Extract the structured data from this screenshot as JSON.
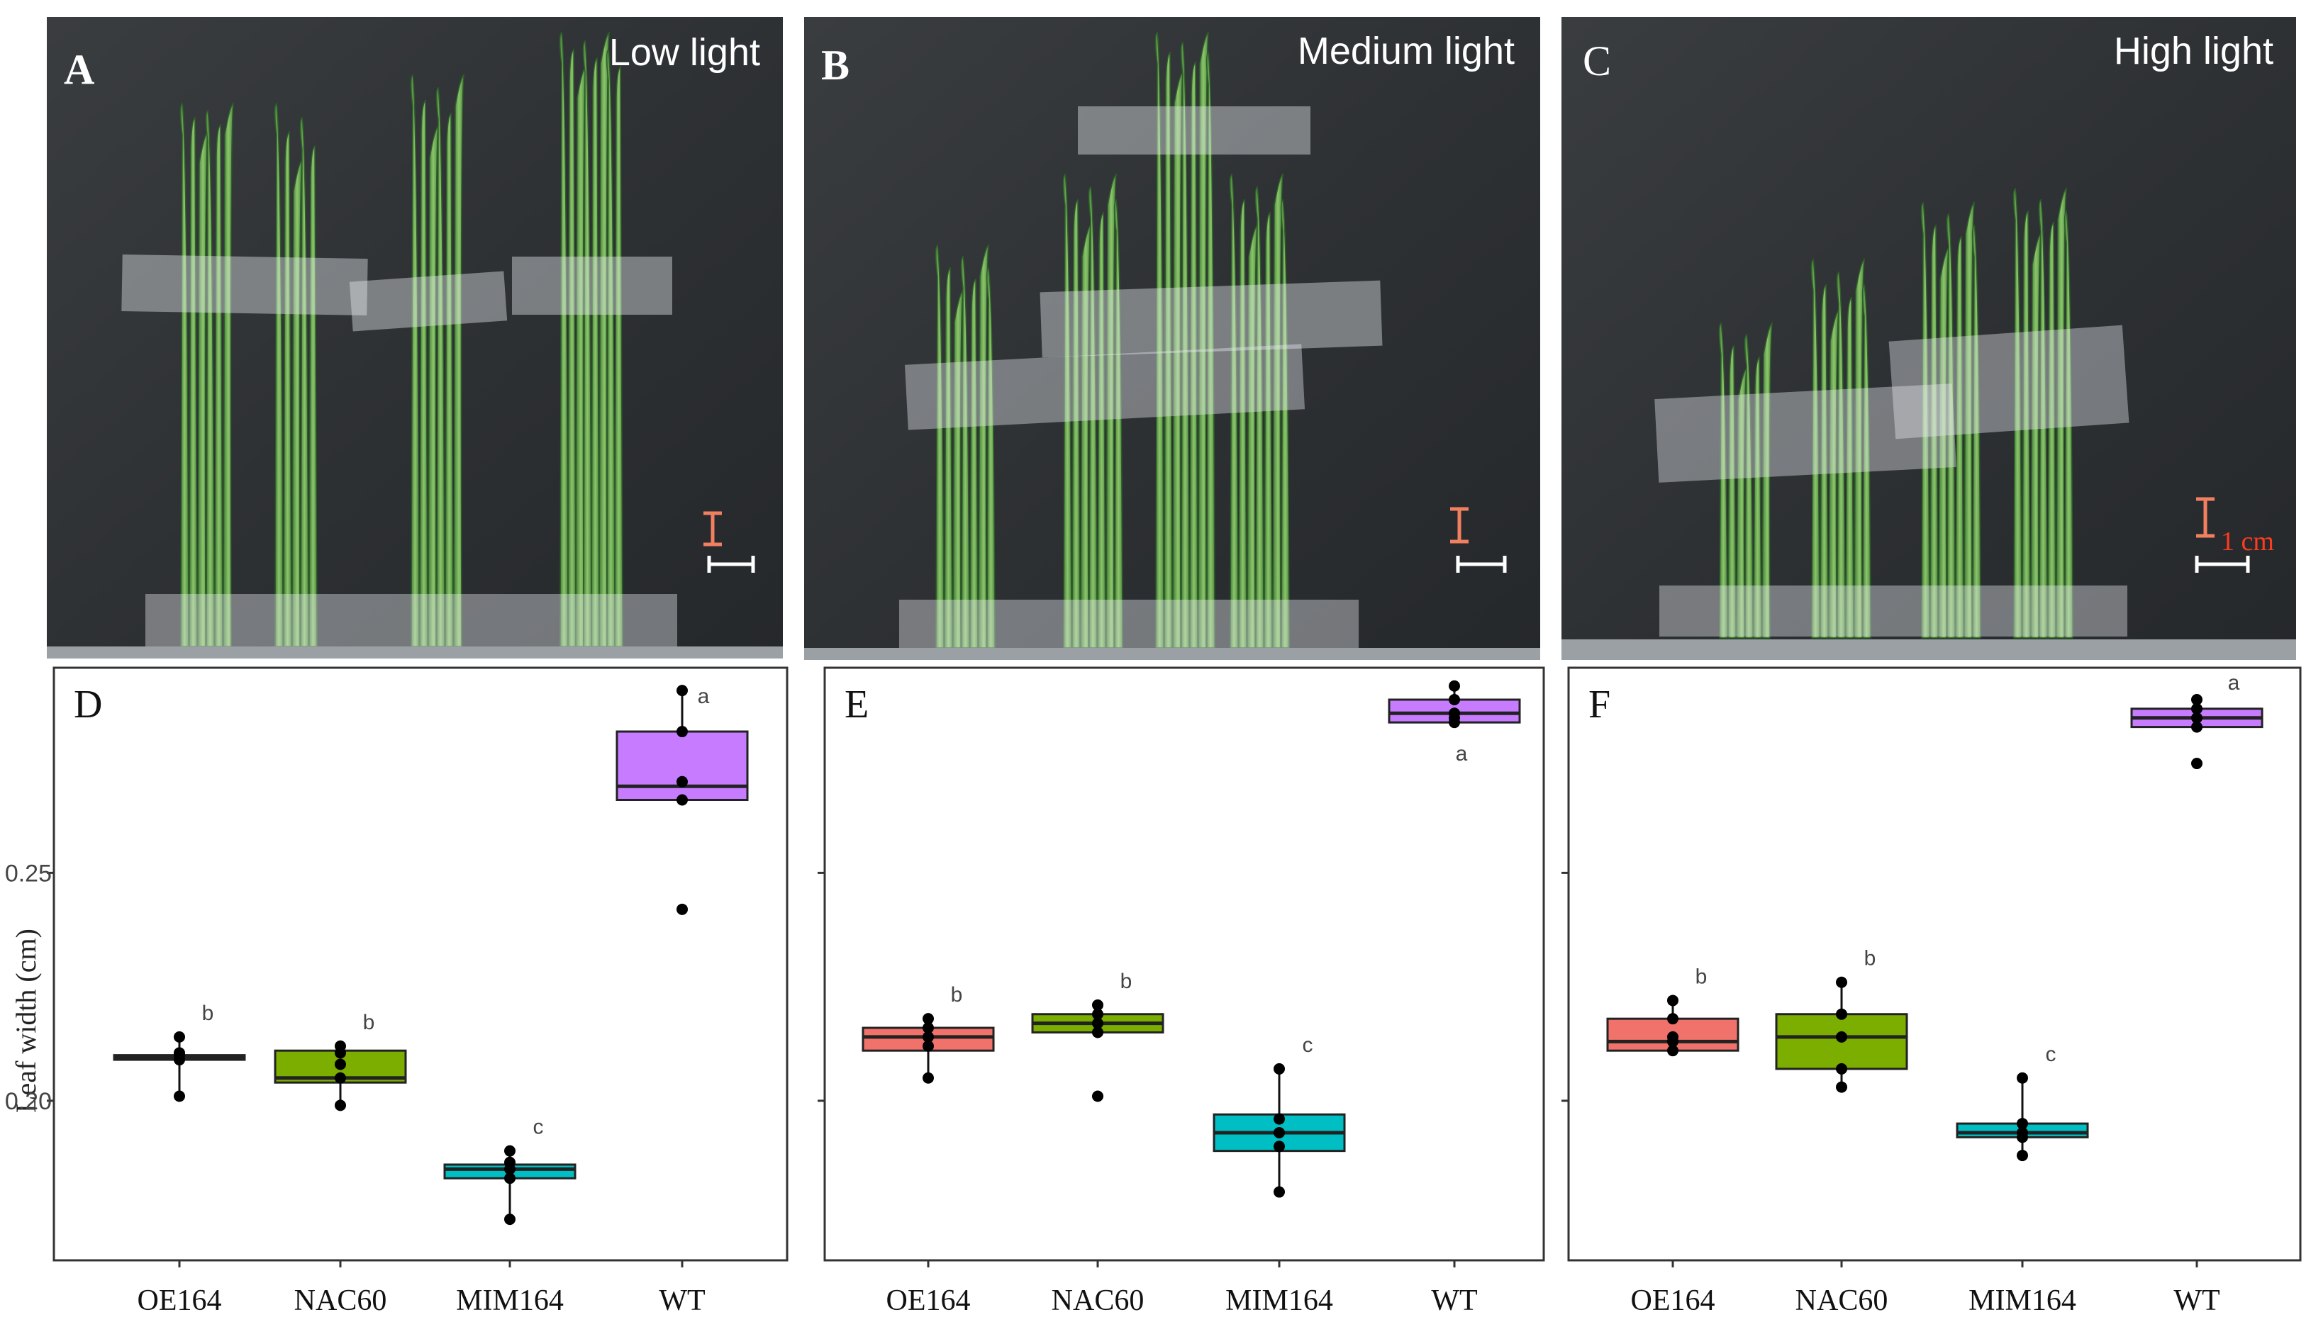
{
  "photos": [
    {
      "letter": "A",
      "title": "Low light"
    },
    {
      "letter": "B",
      "title": "Medium light"
    },
    {
      "letter": "C",
      "title": "High light",
      "scale_label": "1 cm"
    }
  ],
  "y_axis_label": "Leaf width (cm)",
  "colors": {
    "OE164": "#f0726b",
    "NAC60": "#7cae00",
    "MIM164": "#00bfc4",
    "WT": "#c77cff"
  },
  "chart_data": [
    {
      "type": "box",
      "panel": "D",
      "condition": "Low light",
      "categories": [
        "OE164",
        "NAC60",
        "MIM164",
        "WT"
      ],
      "ylabel": "Leaf width (cm)",
      "ylim": [
        0.165,
        0.295
      ],
      "yticks": [
        0.2,
        0.25
      ],
      "ytick_labels": [
        "0.20",
        "0.25"
      ],
      "boxes": [
        {
          "category": "OE164",
          "q1": 0.209,
          "median": 0.2095,
          "q3": 0.21,
          "whisker_low": 0.201,
          "whisker_high": 0.214,
          "points": [
            0.201,
            0.209,
            0.21,
            0.2105,
            0.214
          ],
          "letter": "b"
        },
        {
          "category": "NAC60",
          "q1": 0.204,
          "median": 0.205,
          "q3": 0.211,
          "whisker_low": 0.199,
          "whisker_high": 0.212,
          "points": [
            0.199,
            0.205,
            0.208,
            0.2105,
            0.212
          ],
          "letter": "b"
        },
        {
          "category": "MIM164",
          "q1": 0.183,
          "median": 0.185,
          "q3": 0.186,
          "whisker_low": 0.174,
          "whisker_high": 0.189,
          "points": [
            0.174,
            0.183,
            0.185,
            0.1865,
            0.189
          ],
          "letter": "c"
        },
        {
          "category": "WT",
          "q1": 0.266,
          "median": 0.269,
          "q3": 0.281,
          "whisker_low": 0.266,
          "whisker_high": 0.29,
          "outliers": [
            0.242
          ],
          "points": [
            0.242,
            0.266,
            0.27,
            0.281,
            0.29
          ],
          "letter": "a"
        }
      ]
    },
    {
      "type": "box",
      "panel": "E",
      "condition": "Medium light",
      "categories": [
        "OE164",
        "NAC60",
        "MIM164",
        "WT"
      ],
      "ylabel": "Leaf width (cm)",
      "ylim": [
        0.165,
        0.295
      ],
      "yticks": [
        0.2,
        0.25
      ],
      "ytick_labels": [
        "",
        ""
      ],
      "boxes": [
        {
          "category": "OE164",
          "q1": 0.211,
          "median": 0.214,
          "q3": 0.216,
          "whisker_low": 0.205,
          "whisker_high": 0.218,
          "points": [
            0.205,
            0.212,
            0.214,
            0.216,
            0.218
          ],
          "letter": "b"
        },
        {
          "category": "NAC60",
          "q1": 0.215,
          "median": 0.217,
          "q3": 0.219,
          "whisker_low": 0.215,
          "whisker_high": 0.221,
          "outliers": [
            0.201
          ],
          "points": [
            0.201,
            0.215,
            0.217,
            0.219,
            0.221
          ],
          "letter": "b"
        },
        {
          "category": "MIM164",
          "q1": 0.189,
          "median": 0.193,
          "q3": 0.197,
          "whisker_low": 0.18,
          "whisker_high": 0.207,
          "points": [
            0.18,
            0.19,
            0.193,
            0.196,
            0.207
          ],
          "letter": "c"
        },
        {
          "category": "WT",
          "q1": 0.283,
          "median": 0.285,
          "q3": 0.288,
          "whisker_low": 0.283,
          "whisker_high": 0.291,
          "points": [
            0.283,
            0.284,
            0.285,
            0.288,
            0.291
          ],
          "letter": "a"
        }
      ]
    },
    {
      "type": "box",
      "panel": "F",
      "condition": "High light",
      "categories": [
        "OE164",
        "NAC60",
        "MIM164",
        "WT"
      ],
      "ylabel": "Leaf width (cm)",
      "ylim": [
        0.165,
        0.295
      ],
      "yticks": [
        0.2,
        0.25
      ],
      "ytick_labels": [
        "",
        ""
      ],
      "boxes": [
        {
          "category": "OE164",
          "q1": 0.211,
          "median": 0.213,
          "q3": 0.218,
          "whisker_low": 0.211,
          "whisker_high": 0.222,
          "points": [
            0.211,
            0.213,
            0.214,
            0.218,
            0.222
          ],
          "letter": "b"
        },
        {
          "category": "NAC60",
          "q1": 0.207,
          "median": 0.214,
          "q3": 0.219,
          "whisker_low": 0.203,
          "whisker_high": 0.226,
          "points": [
            0.203,
            0.207,
            0.214,
            0.219,
            0.226
          ],
          "letter": "b"
        },
        {
          "category": "MIM164",
          "q1": 0.192,
          "median": 0.193,
          "q3": 0.195,
          "whisker_low": 0.188,
          "whisker_high": 0.205,
          "points": [
            0.188,
            0.192,
            0.193,
            0.195,
            0.205
          ],
          "letter": "c"
        },
        {
          "category": "WT",
          "q1": 0.282,
          "median": 0.284,
          "q3": 0.286,
          "whisker_low": 0.282,
          "whisker_high": 0.288,
          "outliers": [
            0.274
          ],
          "points": [
            0.274,
            0.282,
            0.284,
            0.286,
            0.288
          ],
          "letter": "a"
        }
      ]
    }
  ]
}
